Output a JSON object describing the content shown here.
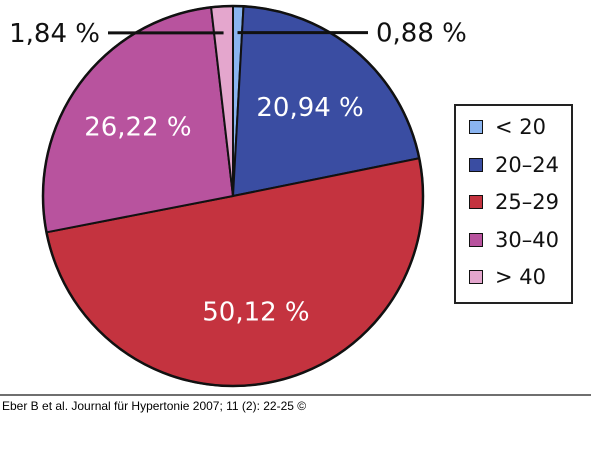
{
  "chart_data": {
    "type": "pie",
    "start": "top",
    "direction": "clockwise",
    "slices": [
      {
        "name": "< 20",
        "value": 0.88,
        "label": "0,88 %",
        "color": "#8ab4f0",
        "label_position": "outside-right"
      },
      {
        "name": "20–24",
        "value": 20.94,
        "label": "20,94 %",
        "color": "#3a4da2",
        "label_position": "inside"
      },
      {
        "name": "25–29",
        "value": 50.12,
        "label": "50,12 %",
        "color": "#c4333f",
        "label_position": "inside"
      },
      {
        "name": "30–40",
        "value": 26.22,
        "label": "26,22 %",
        "color": "#b8539e",
        "label_position": "inside"
      },
      {
        "name": "> 40",
        "value": 1.84,
        "label": "1,84 %",
        "color": "#e4a6cd",
        "label_position": "outside-left"
      }
    ],
    "legend_placement": "right"
  },
  "citation": "Eber B et al. Journal für Hypertonie 2007; 11 (2): 22-25 ©"
}
